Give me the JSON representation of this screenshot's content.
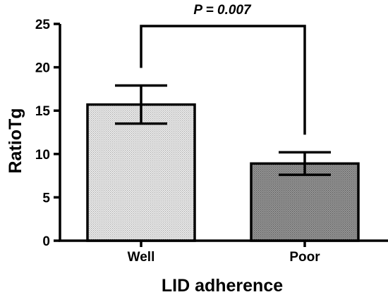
{
  "chart_data": {
    "type": "bar",
    "categories": [
      "Well",
      "Poor"
    ],
    "values": [
      15.7,
      8.9
    ],
    "error_upper": [
      17.9,
      10.2
    ],
    "error_lower": [
      13.5,
      7.6
    ],
    "ylim": [
      0,
      25
    ],
    "yticks": [
      "0",
      "5",
      "10",
      "15",
      "20",
      "25"
    ],
    "ylabel": "RatioTg",
    "xlabel": "LID adherence",
    "annotation": "P = 0.007",
    "grid": false,
    "bar_fill_colors": [
      "#e4e4e4",
      "#8a8a8a"
    ],
    "bar_pattern": "dotted"
  }
}
